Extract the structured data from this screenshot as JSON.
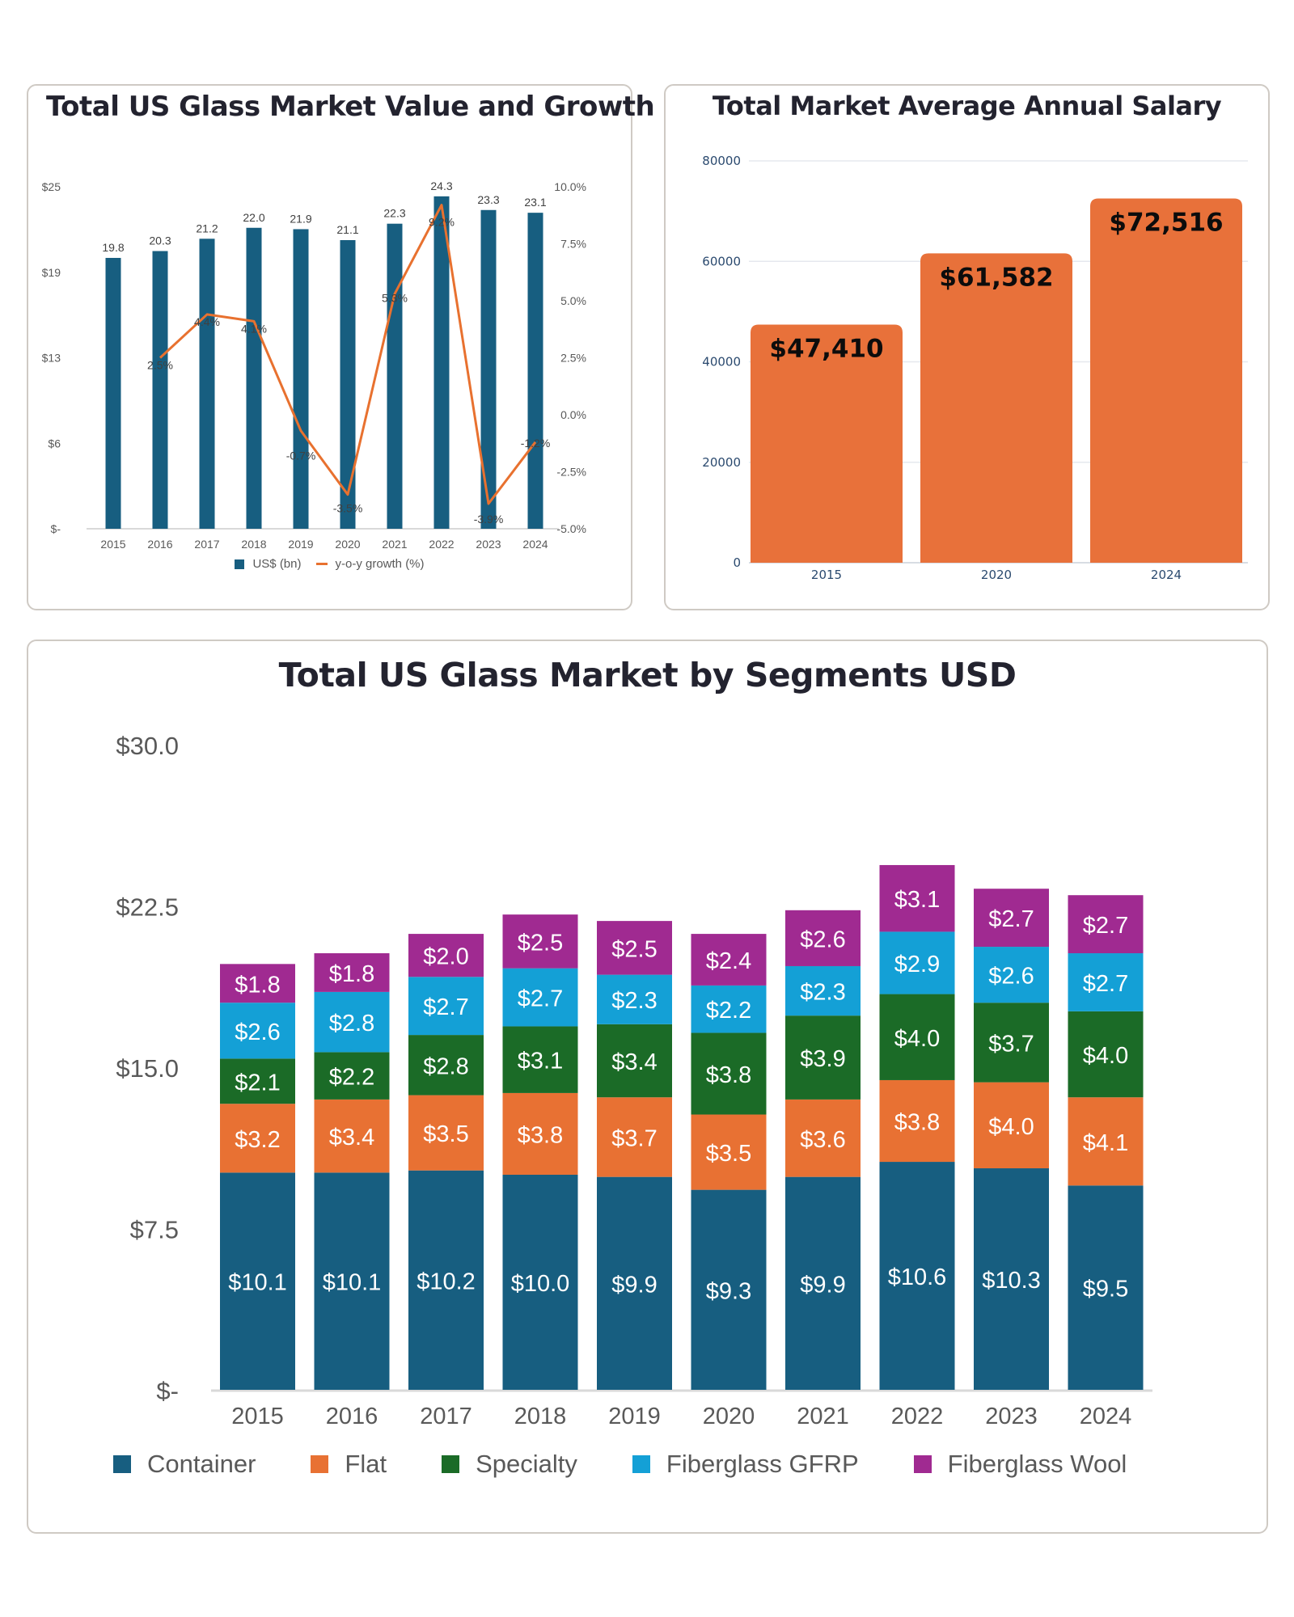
{
  "chart_data": [
    {
      "id": "market_value_growth",
      "type": "bar+line",
      "title": "Total US Glass Market Value and Growth",
      "categories": [
        "2015",
        "2016",
        "2017",
        "2018",
        "2019",
        "2020",
        "2021",
        "2022",
        "2023",
        "2024"
      ],
      "series": [
        {
          "name": "US$ (bn)",
          "type": "bar",
          "axis": "left",
          "color": "#175e80",
          "values": [
            19.8,
            20.3,
            21.2,
            22.0,
            21.9,
            21.1,
            22.3,
            24.3,
            23.3,
            23.1
          ],
          "labels": [
            "19.8",
            "20.3",
            "21.2",
            "22.0",
            "21.9",
            "21.1",
            "22.3",
            "24.3",
            "23.3",
            "23.1"
          ]
        },
        {
          "name": "y-o-y growth (%)",
          "type": "line",
          "axis": "right",
          "color": "#e8712f",
          "values": [
            null,
            2.5,
            4.4,
            4.1,
            -0.7,
            -3.5,
            5.3,
            9.2,
            -3.9,
            -1.2
          ],
          "labels": [
            "",
            "2.5%",
            "4.4%",
            "4.1%",
            "-0.7%",
            "-3.5%",
            "5.3%",
            "9.2%",
            "-3.9%",
            "-1.2%"
          ]
        }
      ],
      "y_left": {
        "range": [
          0,
          25
        ],
        "ticks": [
          0,
          6.25,
          12.5,
          18.75,
          25
        ],
        "tick_labels": [
          "$-",
          "$6",
          "$13",
          "$19",
          "$25"
        ]
      },
      "y_right": {
        "range": [
          -5,
          10
        ],
        "ticks": [
          -5,
          -2.5,
          0,
          2.5,
          5,
          7.5,
          10
        ],
        "tick_labels": [
          "-5.0%",
          "-2.5%",
          "0.0%",
          "2.5%",
          "5.0%",
          "7.5%",
          "10.0%"
        ]
      },
      "legend": {
        "position": "bottom",
        "entries": [
          "US$ (bn)",
          "y-o-y growth (%)"
        ]
      },
      "grid": false
    },
    {
      "id": "average_salary",
      "type": "bar",
      "title": "Total Market Average Annual Salary",
      "categories": [
        "2015",
        "2020",
        "2024"
      ],
      "values": [
        47410,
        61582,
        72516
      ],
      "labels": [
        "$47,410",
        "$61,582",
        "$72,516"
      ],
      "color": "#e8713a",
      "ylim": [
        0,
        80000
      ],
      "yticks": [
        0,
        20000,
        40000,
        60000,
        80000
      ],
      "ytick_labels": [
        "0",
        "20000",
        "40000",
        "60000",
        "80000"
      ],
      "grid": true
    },
    {
      "id": "market_by_segments",
      "type": "stacked-bar",
      "title": "Total US Glass Market by Segments USD",
      "categories": [
        "2015",
        "2016",
        "2017",
        "2018",
        "2019",
        "2020",
        "2021",
        "2022",
        "2023",
        "2024"
      ],
      "series": [
        {
          "name": "Container",
          "color": "#175e80",
          "values": [
            10.1,
            10.1,
            10.2,
            10.0,
            9.9,
            9.3,
            9.9,
            10.6,
            10.3,
            9.5
          ]
        },
        {
          "name": "Flat",
          "color": "#e87133",
          "values": [
            3.2,
            3.4,
            3.5,
            3.8,
            3.7,
            3.5,
            3.6,
            3.8,
            4.0,
            4.1
          ]
        },
        {
          "name": "Specialty",
          "color": "#1b6b27",
          "values": [
            2.1,
            2.2,
            2.8,
            3.1,
            3.4,
            3.8,
            3.9,
            4.0,
            3.7,
            4.0
          ]
        },
        {
          "name": "Fiberglass GFRP",
          "color": "#14a0d6",
          "values": [
            2.6,
            2.8,
            2.7,
            2.7,
            2.3,
            2.2,
            2.3,
            2.9,
            2.6,
            2.7
          ]
        },
        {
          "name": "Fiberglass Wool",
          "color": "#a02a91",
          "values": [
            1.8,
            1.8,
            2.0,
            2.5,
            2.5,
            2.4,
            2.6,
            3.1,
            2.7,
            2.7
          ]
        }
      ],
      "value_prefix": "$",
      "ylim": [
        0,
        30
      ],
      "yticks": [
        0,
        7.5,
        15,
        22.5,
        30
      ],
      "ytick_labels": [
        "$-",
        "$7.5",
        "$15.0",
        "$22.5",
        "$30.0"
      ],
      "legend": {
        "position": "bottom",
        "entries": [
          "Container",
          "Flat",
          "Specialty",
          "Fiberglass GFRP",
          "Fiberglass Wool"
        ]
      },
      "grid": false
    }
  ]
}
